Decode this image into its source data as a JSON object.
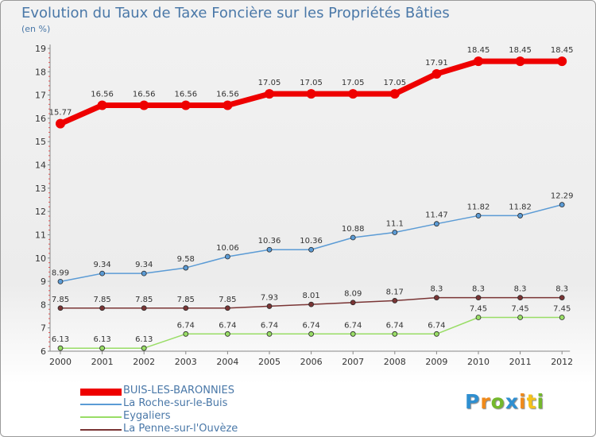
{
  "header": {
    "title": "Evolution du Taux de Taxe Foncière sur les Propriétés Bâties",
    "subtitle": "(en %)"
  },
  "brand": {
    "letters": [
      {
        "char": "P",
        "color": "#2f8fd0"
      },
      {
        "char": "r",
        "color": "#f08a1a"
      },
      {
        "char": "o",
        "color": "#74b82c"
      },
      {
        "char": "x",
        "color": "#2f8fd0"
      },
      {
        "char": "i",
        "color": "#f08a1a"
      },
      {
        "char": "t",
        "color": "#f5c21a"
      },
      {
        "char": "i",
        "color": "#74b82c"
      }
    ]
  },
  "chart_data": {
    "type": "line",
    "title": "Evolution du Taux de Taxe Foncière sur les Propriétés Bâties",
    "ylabel": "(en %)",
    "xlabel": "",
    "ylim": [
      6,
      19
    ],
    "grid": false,
    "legend_position": "bottom-left",
    "x": [
      "2000",
      "2001",
      "2002",
      "2003",
      "2004",
      "2005",
      "2006",
      "2007",
      "2008",
      "2009",
      "2010",
      "2011",
      "2012"
    ],
    "yticks": [
      "6",
      "7",
      "8",
      "9",
      "10",
      "11",
      "12",
      "13",
      "14",
      "15",
      "16",
      "17",
      "18",
      "19"
    ],
    "series": [
      {
        "name": "BUIS-LES-BARONNIES",
        "color": "#ee0000",
        "values": [
          15.77,
          16.56,
          16.56,
          16.56,
          16.56,
          17.05,
          17.05,
          17.05,
          17.05,
          17.91,
          18.45,
          18.45,
          18.45
        ],
        "labels": [
          "15.77",
          "16.56",
          "16.56",
          "16.56",
          "16.56",
          "17.05",
          "17.05",
          "17.05",
          "17.05",
          "17.91",
          "18.45",
          "18.45",
          "18.45"
        ]
      },
      {
        "name": "La Roche-sur-le-Buis",
        "color": "#5b9bd5",
        "values": [
          8.99,
          9.34,
          9.34,
          9.58,
          10.06,
          10.36,
          10.36,
          10.88,
          11.1,
          11.47,
          11.82,
          11.82,
          12.29
        ],
        "labels": [
          "8.99",
          "9.34",
          "9.34",
          "9.58",
          "10.06",
          "10.36",
          "10.36",
          "10.88",
          "11.1",
          "11.47",
          "11.82",
          "11.82",
          "12.29"
        ]
      },
      {
        "name": "Eygaliers",
        "color": "#99dd66",
        "values": [
          6.13,
          6.13,
          6.13,
          6.74,
          6.74,
          6.74,
          6.74,
          6.74,
          6.74,
          6.74,
          7.45,
          7.45,
          7.45
        ],
        "labels": [
          "6.13",
          "6.13",
          "6.13",
          "6.74",
          "6.74",
          "6.74",
          "6.74",
          "6.74",
          "6.74",
          "6.74",
          "7.45",
          "7.45",
          "7.45"
        ]
      },
      {
        "name": "La Penne-sur-l'Ouvèze",
        "color": "#7a3535",
        "values": [
          7.85,
          7.85,
          7.85,
          7.85,
          7.85,
          7.93,
          8.01,
          8.09,
          8.17,
          8.3,
          8.3,
          8.3,
          8.3
        ],
        "labels": [
          "7.85",
          "7.85",
          "7.85",
          "7.85",
          "7.85",
          "7.93",
          "8.01",
          "8.09",
          "8.17",
          "8.3",
          "8.3",
          "8.3",
          "8.3"
        ]
      }
    ]
  }
}
